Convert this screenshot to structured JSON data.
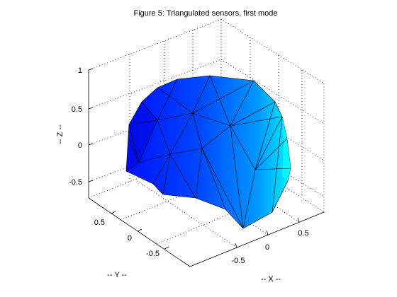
{
  "chart_data": {
    "type": "surface",
    "title": "Figure 5: Triangulated sensors, first mode",
    "xlabel": "-- X --",
    "ylabel": "-- Y --",
    "zlabel": "-- Z --",
    "x_ticks": [
      "-0.5",
      "0",
      "0.5"
    ],
    "y_ticks": [
      "0.5",
      "0",
      "-0.5"
    ],
    "z_ticks": [
      "1",
      "0.5",
      "0",
      "-0.5"
    ],
    "xlim": [
      -0.9,
      0.9
    ],
    "ylim": [
      -0.9,
      0.9
    ],
    "zlim": [
      -0.8,
      1
    ],
    "grid": true,
    "colormap": [
      "#0010ff",
      "#0060ff",
      "#00b0ff",
      "#00ffff"
    ],
    "edge_color": "#000000"
  }
}
